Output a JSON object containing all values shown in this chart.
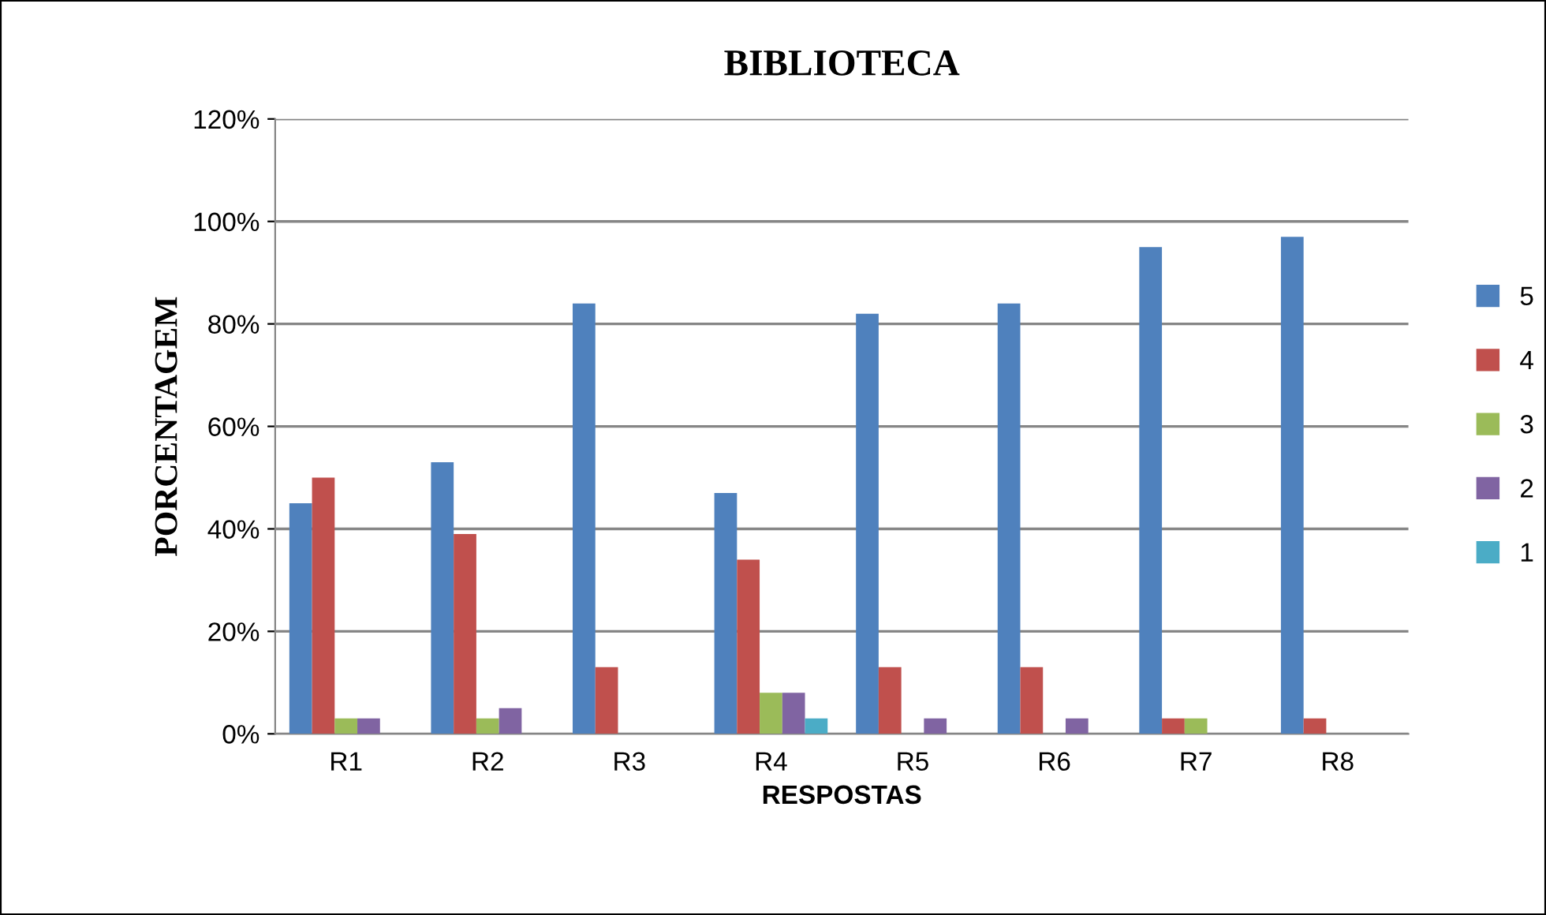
{
  "chart_data": {
    "type": "bar",
    "title": "BIBLIOTECA",
    "xlabel": "RESPOSTAS",
    "ylabel": "PORCENTAGEM",
    "categories": [
      "R1",
      "R2",
      "R3",
      "R4",
      "R5",
      "R6",
      "R7",
      "R8"
    ],
    "series": [
      {
        "name": "5",
        "color": "#4f81bd",
        "values": [
          45,
          53,
          84,
          47,
          82,
          84,
          95,
          97
        ]
      },
      {
        "name": "4",
        "color": "#c0504d",
        "values": [
          50,
          39,
          13,
          34,
          13,
          13,
          3,
          3
        ]
      },
      {
        "name": "3",
        "color": "#9bbb59",
        "values": [
          3,
          3,
          0,
          8,
          0,
          0,
          3,
          0
        ]
      },
      {
        "name": "2",
        "color": "#8064a2",
        "values": [
          3,
          5,
          0,
          8,
          3,
          3,
          0,
          0
        ]
      },
      {
        "name": "1",
        "color": "#4bacc6",
        "values": [
          0,
          0,
          0,
          3,
          0,
          0,
          0,
          0
        ]
      }
    ],
    "ylim": [
      0,
      120
    ],
    "yticks": [
      {
        "value": 0,
        "label": "0%"
      },
      {
        "value": 20,
        "label": "20%"
      },
      {
        "value": 40,
        "label": "40%"
      },
      {
        "value": 60,
        "label": "60%"
      },
      {
        "value": 80,
        "label": "80%"
      },
      {
        "value": 100,
        "label": "100%"
      },
      {
        "value": 120,
        "label": "120%"
      }
    ],
    "grid": "y",
    "legend": "right"
  }
}
